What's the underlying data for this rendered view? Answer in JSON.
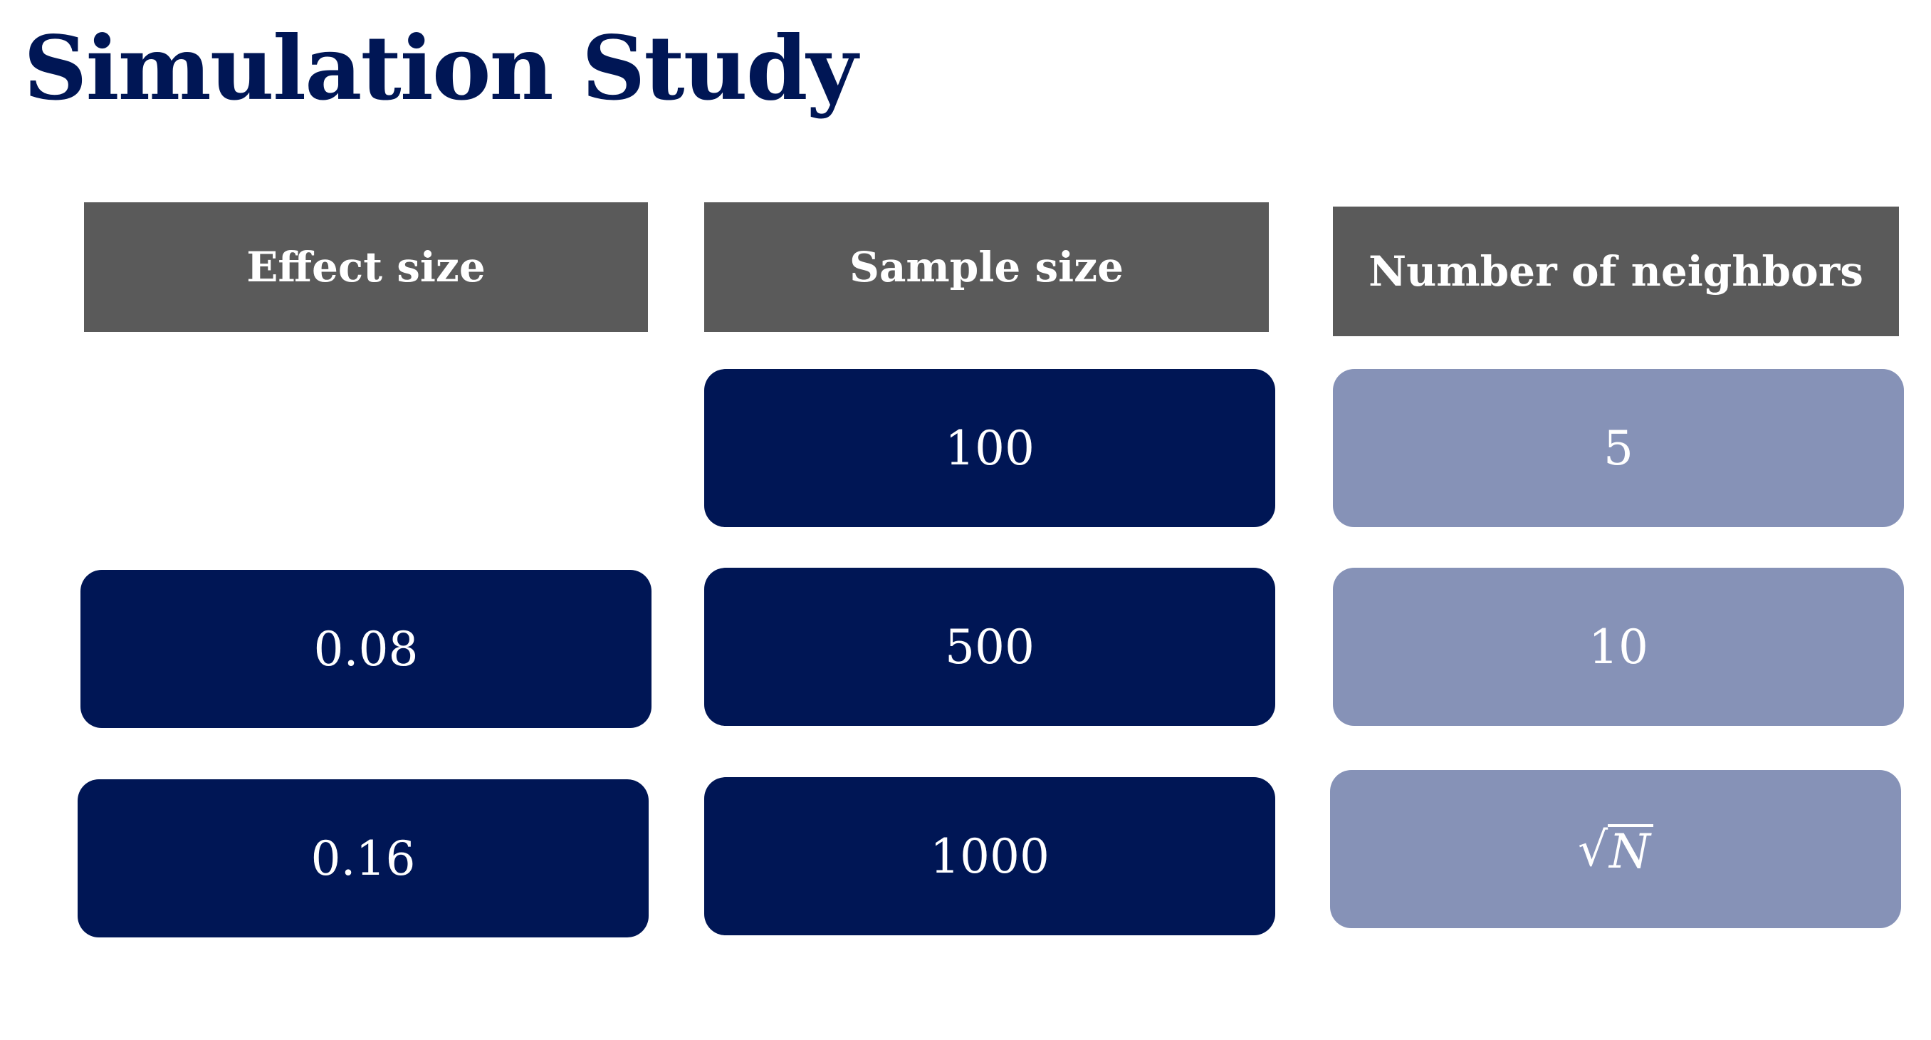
{
  "title": "Simulation Study",
  "colors": {
    "title": "#001655",
    "header_bg": "#5a5a5a",
    "dark_box": "#001655",
    "light_box": "#8692b7",
    "text_on_box": "#ffffff"
  },
  "columns": [
    {
      "header": "Effect size",
      "values": [
        "0.08",
        "0.16"
      ]
    },
    {
      "header": "Sample size",
      "values": [
        "100",
        "500",
        "1000"
      ]
    },
    {
      "header": "Number of neighbors",
      "values": [
        "5",
        "10"
      ],
      "formula": {
        "radical": "√",
        "radicand": "N"
      }
    }
  ]
}
